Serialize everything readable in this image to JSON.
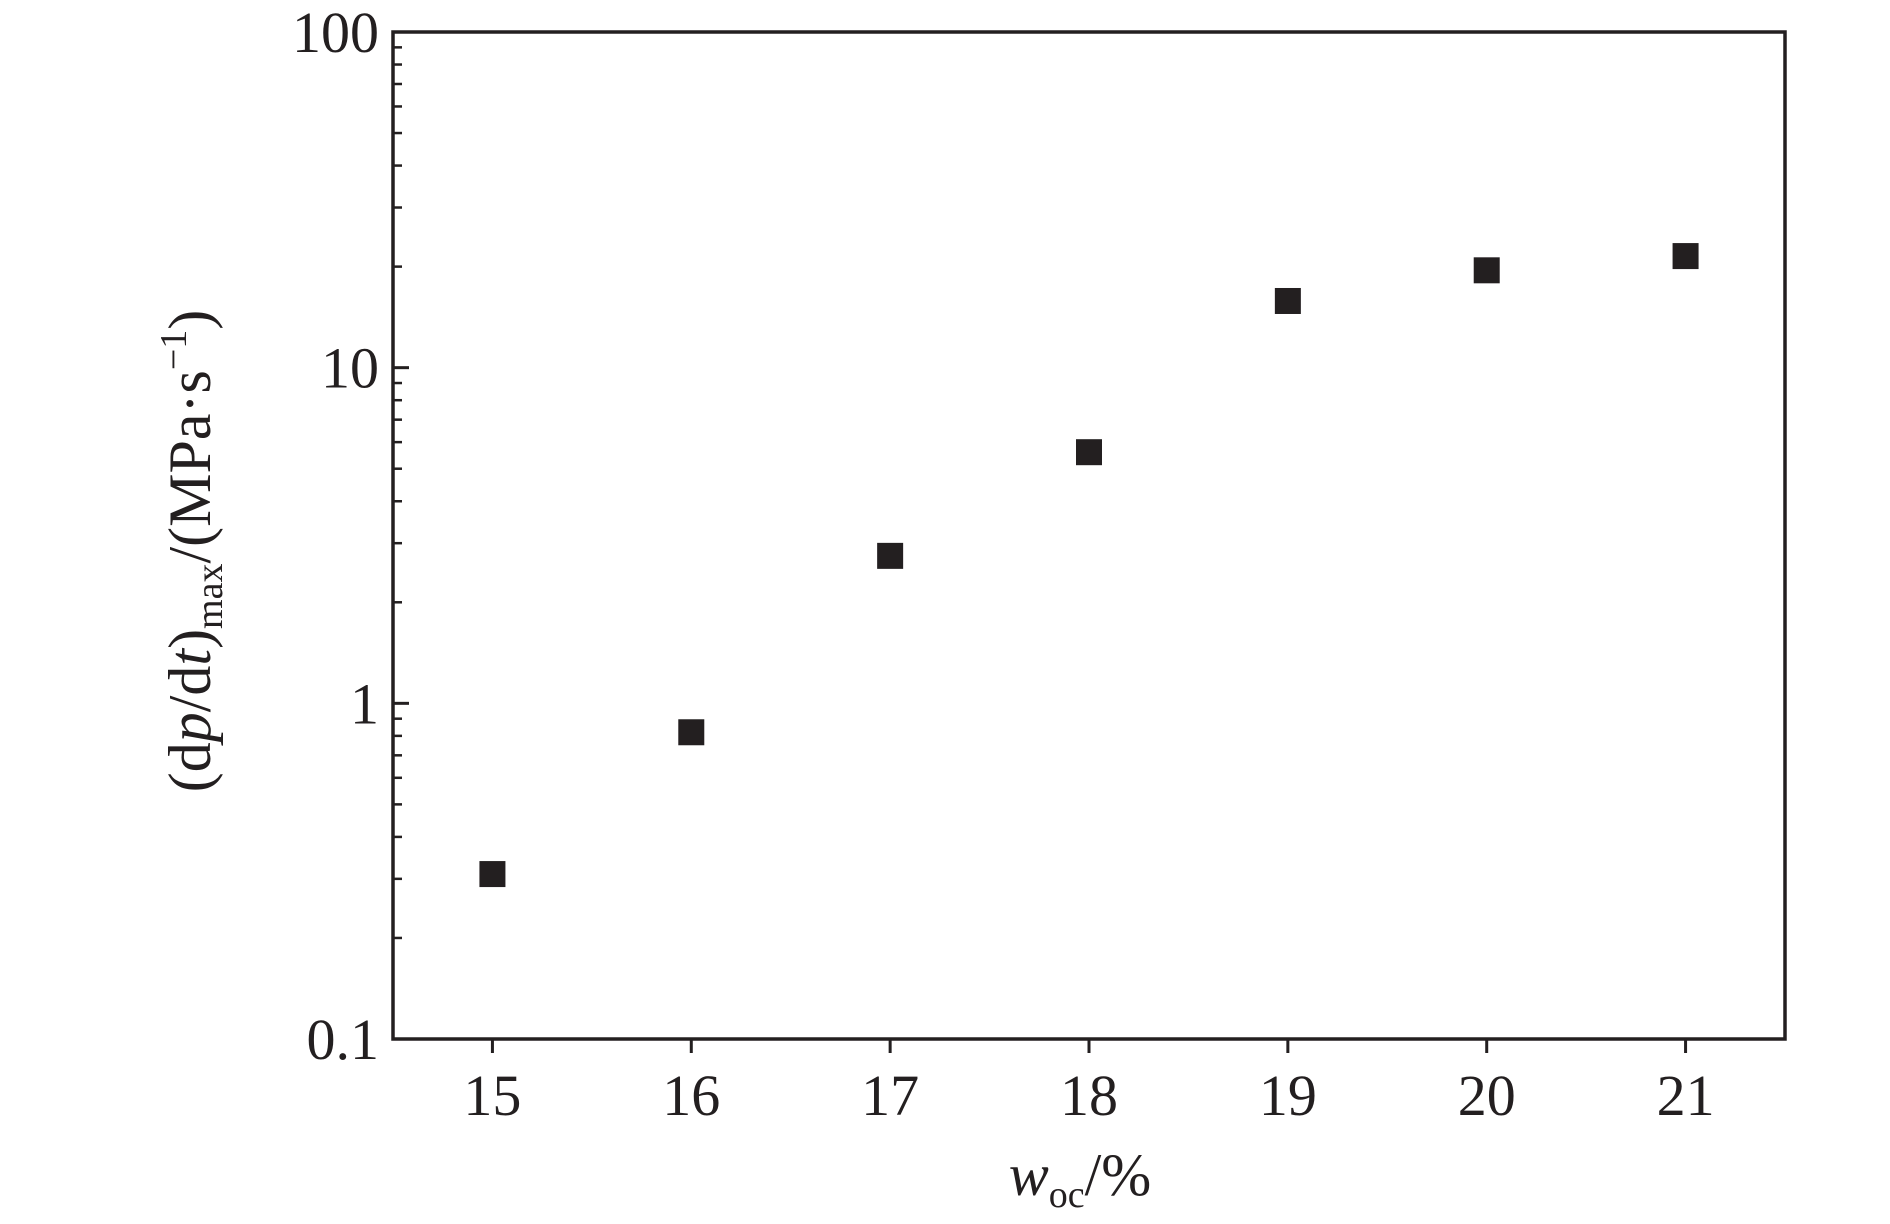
{
  "chart_data": {
    "type": "scatter",
    "title": "",
    "x": [
      15,
      16,
      17,
      18,
      19,
      20,
      21
    ],
    "y": [
      0.31,
      0.82,
      2.75,
      5.6,
      15.8,
      19.5,
      21.5
    ],
    "xlim": [
      14.5,
      21.5
    ],
    "ylim": [
      0.1,
      100
    ],
    "yscale": "log",
    "xticks": [
      "15",
      "16",
      "17",
      "18",
      "19",
      "20",
      "21"
    ],
    "yticks": [
      "0.1",
      "1",
      "10",
      "100"
    ],
    "xlabel": {
      "var": "w",
      "sub": "oc",
      "unit": "/%"
    },
    "ylabel": {
      "open": "(d",
      "var1": "p",
      "mid": "/d",
      "var2": "t",
      "close": ")",
      "sub": "max",
      "unit": "/(MPa·s",
      "sup": "−1",
      "end": ")"
    },
    "marker": "square",
    "marker_color": "#231f20",
    "axis_color": "#231f20",
    "grid": false,
    "legend": "none"
  }
}
